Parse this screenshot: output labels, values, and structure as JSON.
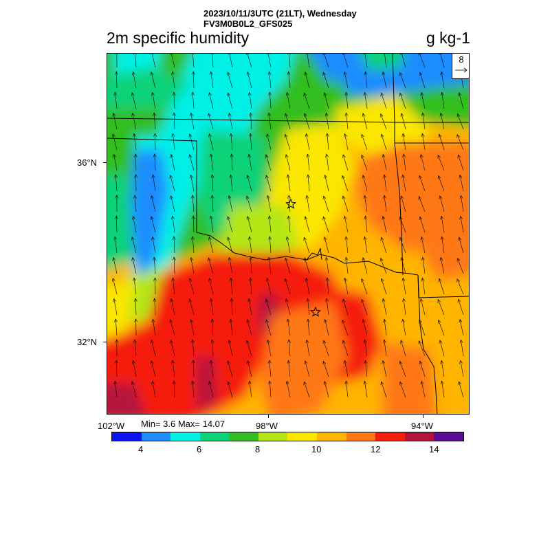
{
  "header": {
    "datetime_line": "2023/10/11/3UTC (21LT), Wednesday",
    "model_line": "FV3M0B0L2_GFS025",
    "title": "2m specific humidity",
    "units": "g kg-1"
  },
  "vector_reference": {
    "value": "8"
  },
  "lat_labels": [
    "36°N",
    "32°N"
  ],
  "lon_labels": [
    "102°W",
    "98°W",
    "94°W"
  ],
  "stats": {
    "text": "Min= 3.6 Max= 14.07"
  },
  "colorbar": {
    "colors": [
      "#0a14f0",
      "#1e8cff",
      "#00f0e6",
      "#0ad278",
      "#32be1e",
      "#b4e614",
      "#fae600",
      "#ffb400",
      "#ff7814",
      "#f51e0a",
      "#b4143c",
      "#5a0a96"
    ],
    "tick_labels": [
      "4",
      "6",
      "8",
      "10",
      "12",
      "14"
    ]
  },
  "markers": [
    "star-marker-oklahoma-city",
    "star-marker-dallas"
  ]
}
